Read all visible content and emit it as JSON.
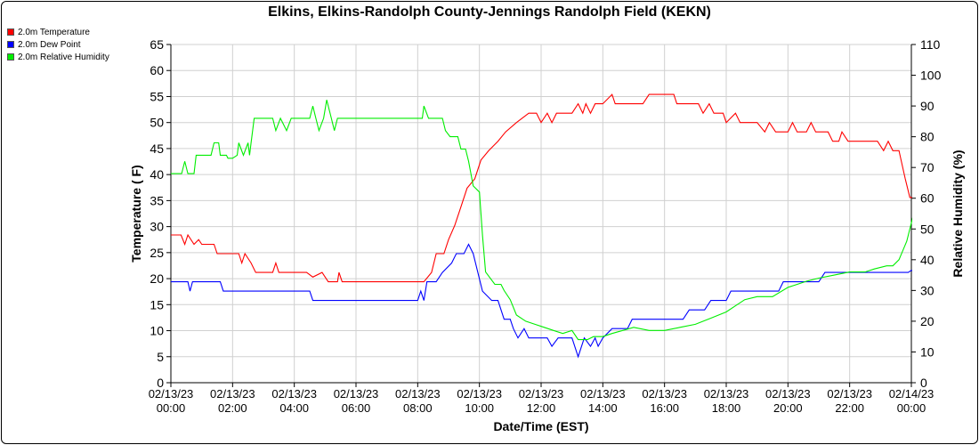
{
  "page": {
    "title": "Elkins, Elkins-Randolph County-Jennings Randolph Field (KEKN)"
  },
  "chart_data": {
    "type": "line",
    "title": "Elkins, Elkins-Randolph County-Jennings Randolph Field (KEKN)",
    "xlabel": "Date/Time (EST)",
    "ylabel": "Temperature ( F)",
    "y2label": "Relative Humidity (%)",
    "ylim": [
      0,
      65
    ],
    "y2lim": [
      0,
      110
    ],
    "xlim": [
      0,
      24
    ],
    "grid": true,
    "legend_position": "top-left",
    "yticks": [
      0,
      5,
      10,
      15,
      20,
      25,
      30,
      35,
      40,
      45,
      50,
      55,
      60,
      65
    ],
    "y2ticks": [
      0,
      10,
      20,
      30,
      40,
      50,
      60,
      70,
      80,
      90,
      100,
      110
    ],
    "xticks": [
      {
        "hour": 0,
        "date": "02/13/23",
        "time": "00:00"
      },
      {
        "hour": 2,
        "date": "02/13/23",
        "time": "02:00"
      },
      {
        "hour": 4,
        "date": "02/13/23",
        "time": "04:00"
      },
      {
        "hour": 6,
        "date": "02/13/23",
        "time": "06:00"
      },
      {
        "hour": 8,
        "date": "02/13/23",
        "time": "08:00"
      },
      {
        "hour": 10,
        "date": "02/13/23",
        "time": "10:00"
      },
      {
        "hour": 12,
        "date": "02/13/23",
        "time": "12:00"
      },
      {
        "hour": 14,
        "date": "02/13/23",
        "time": "14:00"
      },
      {
        "hour": 16,
        "date": "02/13/23",
        "time": "16:00"
      },
      {
        "hour": 18,
        "date": "02/13/23",
        "time": "18:00"
      },
      {
        "hour": 20,
        "date": "02/13/23",
        "time": "20:00"
      },
      {
        "hour": 22,
        "date": "02/13/23",
        "time": "22:00"
      },
      {
        "hour": 24,
        "date": "02/14/23",
        "time": "00:00"
      }
    ],
    "series": [
      {
        "name": "2.0m Temperature",
        "color": "#ff0000",
        "axis": "left",
        "points": [
          [
            0,
            28.4
          ],
          [
            0.33,
            28.4
          ],
          [
            0.45,
            26.6
          ],
          [
            0.55,
            28.4
          ],
          [
            0.75,
            26.6
          ],
          [
            0.9,
            27.5
          ],
          [
            1.0,
            26.6
          ],
          [
            1.4,
            26.6
          ],
          [
            1.5,
            24.8
          ],
          [
            2.2,
            24.8
          ],
          [
            2.3,
            23.0
          ],
          [
            2.4,
            24.8
          ],
          [
            2.6,
            23.0
          ],
          [
            2.75,
            21.2
          ],
          [
            3.3,
            21.2
          ],
          [
            3.4,
            23.0
          ],
          [
            3.5,
            21.2
          ],
          [
            4.4,
            21.2
          ],
          [
            4.6,
            20.3
          ],
          [
            4.9,
            21.2
          ],
          [
            5.1,
            19.4
          ],
          [
            5.4,
            19.4
          ],
          [
            5.45,
            21.2
          ],
          [
            5.55,
            19.4
          ],
          [
            8.2,
            19.4
          ],
          [
            8.45,
            21.2
          ],
          [
            8.6,
            24.8
          ],
          [
            8.85,
            24.8
          ],
          [
            9.0,
            27.5
          ],
          [
            9.2,
            30.2
          ],
          [
            9.4,
            33.8
          ],
          [
            9.6,
            37.4
          ],
          [
            9.85,
            39.2
          ],
          [
            10.05,
            42.8
          ],
          [
            10.3,
            44.6
          ],
          [
            10.6,
            46.4
          ],
          [
            10.85,
            48.2
          ],
          [
            11.2,
            50.0
          ],
          [
            11.6,
            51.8
          ],
          [
            11.85,
            51.8
          ],
          [
            12.0,
            50.0
          ],
          [
            12.2,
            51.8
          ],
          [
            12.35,
            50.0
          ],
          [
            12.5,
            51.8
          ],
          [
            13.0,
            51.8
          ],
          [
            13.2,
            53.6
          ],
          [
            13.35,
            51.8
          ],
          [
            13.45,
            53.6
          ],
          [
            13.6,
            51.8
          ],
          [
            13.75,
            53.6
          ],
          [
            14.0,
            53.6
          ],
          [
            14.3,
            55.4
          ],
          [
            14.4,
            53.6
          ],
          [
            15.3,
            53.6
          ],
          [
            15.5,
            55.4
          ],
          [
            16.3,
            55.4
          ],
          [
            16.4,
            53.6
          ],
          [
            17.1,
            53.6
          ],
          [
            17.25,
            51.8
          ],
          [
            17.45,
            53.6
          ],
          [
            17.6,
            51.8
          ],
          [
            17.9,
            51.8
          ],
          [
            18.0,
            50.0
          ],
          [
            18.3,
            51.8
          ],
          [
            18.45,
            50.0
          ],
          [
            19.0,
            50.0
          ],
          [
            19.25,
            48.2
          ],
          [
            19.4,
            50.0
          ],
          [
            19.6,
            48.2
          ],
          [
            20.0,
            48.2
          ],
          [
            20.15,
            50.0
          ],
          [
            20.3,
            48.2
          ],
          [
            20.6,
            48.2
          ],
          [
            20.75,
            50.0
          ],
          [
            20.9,
            48.2
          ],
          [
            21.3,
            48.2
          ],
          [
            21.45,
            46.4
          ],
          [
            21.65,
            46.4
          ],
          [
            21.75,
            48.2
          ],
          [
            21.95,
            46.4
          ],
          [
            22.9,
            46.4
          ],
          [
            23.1,
            44.6
          ],
          [
            23.25,
            46.4
          ],
          [
            23.4,
            44.6
          ],
          [
            23.6,
            44.6
          ],
          [
            23.8,
            39.2
          ],
          [
            23.95,
            35.6
          ],
          [
            24.15,
            35.6
          ],
          [
            24.3,
            33.8
          ]
        ]
      },
      {
        "name": "2.0m Dew Point",
        "color": "#0000ff",
        "axis": "left",
        "points": [
          [
            0,
            19.4
          ],
          [
            0.55,
            19.4
          ],
          [
            0.62,
            17.6
          ],
          [
            0.7,
            19.4
          ],
          [
            1.6,
            19.4
          ],
          [
            1.7,
            17.6
          ],
          [
            1.8,
            17.6
          ],
          [
            1.9,
            17.6
          ],
          [
            4.5,
            17.6
          ],
          [
            4.6,
            15.8
          ],
          [
            4.8,
            15.8
          ],
          [
            5.15,
            15.8
          ],
          [
            8.0,
            15.8
          ],
          [
            8.1,
            17.6
          ],
          [
            8.2,
            15.8
          ],
          [
            8.3,
            19.4
          ],
          [
            8.6,
            19.4
          ],
          [
            8.8,
            21.2
          ],
          [
            9.1,
            23.0
          ],
          [
            9.25,
            24.8
          ],
          [
            9.5,
            24.8
          ],
          [
            9.65,
            26.6
          ],
          [
            9.8,
            24.8
          ],
          [
            9.95,
            21.2
          ],
          [
            10.1,
            17.6
          ],
          [
            10.4,
            15.8
          ],
          [
            10.6,
            15.8
          ],
          [
            10.8,
            12.2
          ],
          [
            11.0,
            12.2
          ],
          [
            11.1,
            10.4
          ],
          [
            11.25,
            8.6
          ],
          [
            11.45,
            10.4
          ],
          [
            11.6,
            8.6
          ],
          [
            12.1,
            8.6
          ],
          [
            12.2,
            8.6
          ],
          [
            12.35,
            7.0
          ],
          [
            12.55,
            8.6
          ],
          [
            13.0,
            8.6
          ],
          [
            13.2,
            5.0
          ],
          [
            13.4,
            8.6
          ],
          [
            13.6,
            7.0
          ],
          [
            13.75,
            8.6
          ],
          [
            13.85,
            7.0
          ],
          [
            14.0,
            8.6
          ],
          [
            14.3,
            10.4
          ],
          [
            14.8,
            10.4
          ],
          [
            14.95,
            12.2
          ],
          [
            16.6,
            12.2
          ],
          [
            16.8,
            14.0
          ],
          [
            17.3,
            14.0
          ],
          [
            17.5,
            15.8
          ],
          [
            18.0,
            15.8
          ],
          [
            18.15,
            17.6
          ],
          [
            19.7,
            17.6
          ],
          [
            19.85,
            19.4
          ],
          [
            21.0,
            19.4
          ],
          [
            21.2,
            21.2
          ],
          [
            22.5,
            21.2
          ],
          [
            23.9,
            21.2
          ],
          [
            24.0,
            21.6
          ],
          [
            24.2,
            21.2
          ]
        ]
      },
      {
        "name": "2.0m Relative Humidity",
        "color": "#00ee00",
        "axis": "right",
        "points": [
          [
            0,
            68
          ],
          [
            0.35,
            68
          ],
          [
            0.45,
            72
          ],
          [
            0.55,
            68
          ],
          [
            0.75,
            68
          ],
          [
            0.82,
            74
          ],
          [
            1.0,
            74
          ],
          [
            1.3,
            74
          ],
          [
            1.4,
            78
          ],
          [
            1.55,
            78
          ],
          [
            1.6,
            74
          ],
          [
            1.8,
            74
          ],
          [
            1.85,
            73
          ],
          [
            2.0,
            73
          ],
          [
            2.15,
            74
          ],
          [
            2.2,
            78
          ],
          [
            2.35,
            74
          ],
          [
            2.5,
            78
          ],
          [
            2.55,
            74
          ],
          [
            2.6,
            78
          ],
          [
            2.7,
            86
          ],
          [
            3.3,
            86
          ],
          [
            3.4,
            82
          ],
          [
            3.55,
            86
          ],
          [
            3.75,
            82
          ],
          [
            3.9,
            86
          ],
          [
            4.5,
            86
          ],
          [
            4.6,
            90
          ],
          [
            4.7,
            86
          ],
          [
            4.8,
            82
          ],
          [
            4.95,
            86
          ],
          [
            5.05,
            92
          ],
          [
            5.2,
            86
          ],
          [
            5.3,
            82
          ],
          [
            5.4,
            86
          ],
          [
            8.15,
            86
          ],
          [
            8.2,
            90
          ],
          [
            8.35,
            86
          ],
          [
            8.8,
            86
          ],
          [
            8.9,
            82
          ],
          [
            9.05,
            80
          ],
          [
            9.3,
            80
          ],
          [
            9.4,
            76
          ],
          [
            9.55,
            76
          ],
          [
            9.65,
            72
          ],
          [
            9.8,
            64
          ],
          [
            10.0,
            62
          ],
          [
            10.1,
            48
          ],
          [
            10.2,
            36
          ],
          [
            10.5,
            32
          ],
          [
            10.7,
            32
          ],
          [
            10.8,
            30
          ],
          [
            11.0,
            27
          ],
          [
            11.2,
            22
          ],
          [
            11.5,
            20
          ],
          [
            11.8,
            19
          ],
          [
            12.1,
            18
          ],
          [
            12.4,
            17
          ],
          [
            12.7,
            16
          ],
          [
            13.0,
            17
          ],
          [
            13.2,
            14
          ],
          [
            13.5,
            14
          ],
          [
            13.7,
            15
          ],
          [
            14.0,
            15
          ],
          [
            14.3,
            16
          ],
          [
            15.0,
            18
          ],
          [
            15.5,
            17
          ],
          [
            16.0,
            17
          ],
          [
            16.5,
            18
          ],
          [
            17.0,
            19
          ],
          [
            17.5,
            21
          ],
          [
            18.0,
            23
          ],
          [
            18.3,
            25
          ],
          [
            18.6,
            27
          ],
          [
            19.0,
            28
          ],
          [
            19.5,
            28
          ],
          [
            20.0,
            31
          ],
          [
            20.3,
            32
          ],
          [
            20.6,
            33
          ],
          [
            21.0,
            34
          ],
          [
            21.5,
            35
          ],
          [
            22.0,
            36
          ],
          [
            22.5,
            36
          ],
          [
            22.8,
            37
          ],
          [
            23.2,
            38
          ],
          [
            23.4,
            38
          ],
          [
            23.6,
            40
          ],
          [
            23.85,
            46
          ],
          [
            24.1,
            56
          ],
          [
            24.3,
            58
          ]
        ]
      }
    ]
  }
}
